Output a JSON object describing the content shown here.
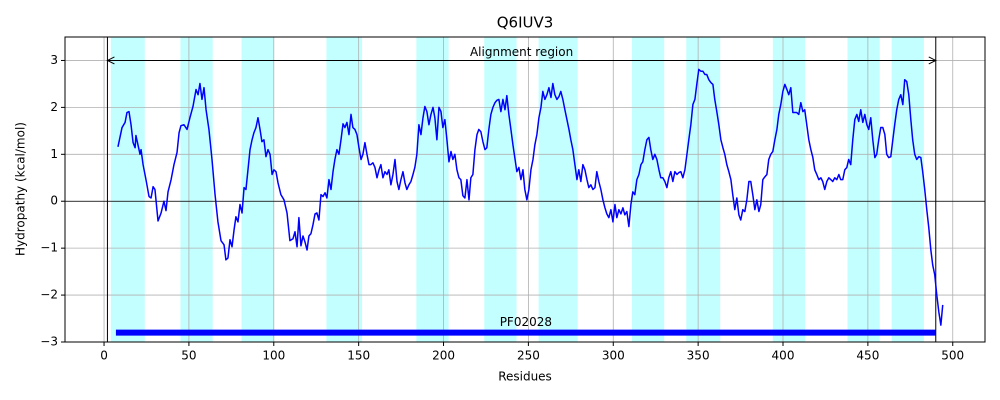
{
  "chart_data": {
    "type": "line",
    "title": "Q6IUV3",
    "xlabel": "Residues",
    "ylabel": "Hydropathy (kcal/mol)",
    "xlim": [
      -23,
      519
    ],
    "ylim": [
      -3,
      3.5
    ],
    "xticks": [
      0,
      50,
      100,
      150,
      200,
      250,
      300,
      350,
      400,
      450,
      500
    ],
    "yticks": [
      {
        "value": -3,
        "label": "−3"
      },
      {
        "value": -2,
        "label": "−2"
      },
      {
        "value": -1,
        "label": "−1"
      },
      0,
      1,
      2,
      3
    ],
    "grid": true,
    "series": [
      {
        "color": "#0000ff",
        "x": [
          8.2,
          10.6,
          12.4,
          13.5,
          14.7,
          15.9,
          17.1,
          18.3,
          18.8,
          20,
          21.2,
          21.8,
          23,
          24.7,
          26.5,
          27.7,
          28.9,
          30,
          31.8,
          33.6,
          35.3,
          36.5,
          37.7,
          39.5,
          41.2,
          43,
          44.2,
          45.3,
          47.1,
          48.9,
          50.6,
          52.4,
          54.2,
          55.4,
          56.5,
          57.7,
          58.9,
          60.1,
          61.8,
          63.6,
          65.4,
          67.1,
          68.9,
          70.7,
          71.8,
          73,
          74.2,
          75.4,
          76.6,
          77.7,
          78.9,
          80.1,
          81.3,
          82.5,
          83.6,
          84.8,
          86,
          87.2,
          88.3,
          89.5,
          90.7,
          91.9,
          93,
          94.2,
          95.4,
          96.6,
          97.8,
          99,
          100.1,
          101.3,
          102.5,
          104.2,
          106,
          107.8,
          109.5,
          111.3,
          112.5,
          113.7,
          114.8,
          116,
          117.2,
          118.4,
          119.6,
          120.7,
          121.9,
          123.1,
          124.3,
          125.4,
          126.6,
          127.8,
          129,
          130.2,
          131.3,
          132.5,
          133.7,
          134.9,
          136,
          137.2,
          138.4,
          139.6,
          140.8,
          141.9,
          143.1,
          144.3,
          145.5,
          146.6,
          147.8,
          149,
          150.2,
          151.4,
          152.5,
          153.7,
          154.9,
          156.1,
          157.2,
          158.4,
          159.6,
          160.8,
          162,
          163.1,
          164.3,
          165.5,
          166.7,
          167.8,
          169,
          170.2,
          171.4,
          172.6,
          173.7,
          174.9,
          176.1,
          177.3,
          178.4,
          179.6,
          180.8,
          182,
          183.1,
          184.3,
          185.5,
          186.7,
          187.9,
          189,
          190.2,
          191.4,
          192.6,
          193.8,
          194.9,
          196.1,
          197.3,
          198.5,
          199.6,
          200.8,
          202,
          203.2,
          204.4,
          205.5,
          206.7,
          207.9,
          209.1,
          210.2,
          211.4,
          212.6,
          213.8,
          215,
          216.1,
          217.3,
          218.5,
          219.7,
          220.8,
          222,
          223.2,
          224.4,
          225.5,
          226.7,
          227.9,
          229.1,
          230.3,
          231.4,
          232.6,
          233.8,
          235,
          236.2,
          237.3,
          238.5,
          239.7,
          240.9,
          242,
          243.2,
          244.4,
          245.6,
          246.8,
          247.9,
          249.1,
          250.3,
          251.5,
          252.7,
          253.8,
          255,
          256.2,
          257.4,
          258.5,
          259.7,
          260.9,
          262.1,
          263.3,
          264.4,
          265.6,
          266.8,
          268,
          269.1,
          270.3,
          271.5,
          272.7,
          273.9,
          275,
          276.2,
          277.4,
          278.6,
          279.7,
          280.9,
          282.1,
          283.3,
          284.5,
          285.6,
          286.8,
          288,
          289.2,
          290.3,
          291.5,
          292.7,
          293.9,
          295.1,
          296.2,
          297.4,
          298.6,
          299.8,
          301,
          302.1,
          303.3,
          304.5,
          305.7,
          306.8,
          308,
          309.2,
          310.4,
          311.5,
          312.7,
          313.9,
          315.1,
          316.3,
          317.4,
          318.6,
          319.8,
          321,
          322.1,
          323.3,
          324.5,
          325.7,
          326.9,
          328,
          329.2,
          330.4,
          331.6,
          332.7,
          333.9,
          335.1,
          336.3,
          337.5,
          338.6,
          339.8,
          341,
          342.2,
          343.4,
          344.5,
          345.7,
          346.9,
          348.1,
          349.2,
          350.4,
          351.6,
          352.8,
          354,
          355.1,
          356.3,
          357.5,
          358.7,
          359.8,
          361,
          362.2,
          363.4,
          364.6,
          365.7,
          366.9,
          368.1,
          369.3,
          370.4,
          371.6,
          372.8,
          374,
          375.1,
          376.3,
          377.5,
          378.7,
          379.9,
          381,
          382.2,
          383.4,
          384.6,
          385.8,
          386.9,
          388.1,
          389.3,
          390.5,
          391.6,
          392.8,
          394,
          395.2,
          396.4,
          397.5,
          398.7,
          399.9,
          401.1,
          402.3,
          403.4,
          404.6,
          405.8,
          407,
          408.1,
          409.3,
          410.5,
          411.7,
          412.8,
          414,
          415.2,
          416.4,
          417.6,
          418.7,
          419.9,
          421.1,
          422.3,
          423.4,
          424.6,
          425.8,
          427,
          428.2,
          429.3,
          430.5,
          431.7,
          432.9,
          434,
          435.2,
          436.4,
          437.6,
          438.7,
          439.9,
          441.1,
          442.3,
          443.5,
          444.6,
          445.8,
          447,
          448.2,
          449.4,
          450.5,
          451.7,
          452.9,
          454.1,
          455.2,
          456.4,
          457.6,
          458.8,
          460,
          461.1,
          462.3,
          463.5,
          464.7,
          465.8,
          467,
          468.2,
          469.4,
          470.6,
          471.7,
          472.9,
          474.1,
          475.3,
          476.4,
          477.6,
          478.8,
          480,
          481.2,
          482.3,
          483.5,
          484.7,
          485.9,
          487.1,
          488.2,
          489.4,
          490.6,
          491.8,
          493,
          494.1
        ],
        "values": [
          1.16,
          1.57,
          1.68,
          1.89,
          1.91,
          1.63,
          1.25,
          1.14,
          1.4,
          1.2,
          1.0,
          1.1,
          0.78,
          0.46,
          0.1,
          0.07,
          0.31,
          0.25,
          -0.42,
          -0.25,
          0,
          -0.2,
          0.2,
          0.46,
          0.78,
          1.04,
          1.46,
          1.61,
          1.63,
          1.53,
          1.78,
          2.02,
          2.38,
          2.27,
          2.51,
          2.17,
          2.42,
          1.95,
          1.53,
          0.89,
          0.14,
          -0.44,
          -0.84,
          -0.93,
          -1.25,
          -1.21,
          -0.82,
          -0.97,
          -0.61,
          -0.33,
          -0.44,
          -0.07,
          -0.25,
          0.29,
          0.25,
          0.67,
          1.1,
          1.31,
          1.46,
          1.57,
          1.78,
          1.53,
          1.27,
          1.31,
          0.95,
          1.1,
          1.0,
          0.57,
          0.67,
          0.63,
          0.39,
          0.14,
          0.03,
          -0.25,
          -0.84,
          -0.8,
          -0.65,
          -0.97,
          -0.35,
          -0.95,
          -0.74,
          -0.87,
          -1.04,
          -0.74,
          -0.69,
          -0.5,
          -0.27,
          -0.25,
          -0.4,
          0.14,
          0.1,
          0.18,
          0.07,
          0.46,
          0.25,
          0.63,
          0.89,
          1.1,
          1.0,
          1.31,
          1.65,
          1.57,
          1.68,
          1.42,
          1.85,
          1.57,
          1.53,
          1.42,
          1.14,
          0.89,
          1.0,
          1.25,
          1.0,
          0.78,
          0.78,
          0.82,
          0.72,
          0.5,
          0.67,
          0.78,
          0.5,
          0.63,
          0.57,
          0.67,
          0.35,
          0.57,
          0.89,
          0.42,
          0.25,
          0.46,
          0.63,
          0.39,
          0.25,
          0.35,
          0.42,
          0.57,
          0.72,
          1.0,
          1.63,
          1.42,
          1.78,
          2.02,
          1.91,
          1.63,
          1.85,
          2.0,
          1.78,
          1.31,
          2.0,
          1.91,
          1.57,
          1.74,
          1.31,
          0.84,
          1.06,
          0.89,
          1.0,
          0.67,
          0.5,
          0.46,
          0.12,
          0.07,
          0.46,
          0.03,
          0.5,
          0.57,
          1.1,
          1.42,
          1.53,
          1.48,
          1.27,
          1.1,
          1.14,
          1.53,
          1.85,
          2.0,
          2.1,
          2.15,
          2.17,
          1.91,
          2.17,
          1.95,
          2.25,
          1.85,
          1.53,
          1.2,
          0.93,
          0.63,
          0.72,
          0.46,
          0.67,
          0.25,
          0.03,
          0.25,
          0.67,
          0.89,
          1.2,
          1.42,
          1.78,
          2.0,
          2.34,
          2.17,
          2.27,
          2.42,
          2.21,
          2.51,
          2.27,
          2.17,
          2.23,
          2.34,
          2.17,
          1.95,
          1.74,
          1.53,
          1.31,
          1.1,
          0.78,
          0.46,
          0.67,
          0.42,
          0.78,
          0.67,
          0.46,
          0.29,
          0.35,
          0.25,
          0.29,
          0.63,
          0.42,
          0.25,
          0.03,
          -0.14,
          -0.27,
          -0.35,
          -0.18,
          -0.44,
          -0.07,
          -0.35,
          -0.18,
          -0.27,
          -0.14,
          -0.29,
          -0.22,
          -0.54,
          -0.07,
          0.2,
          0.14,
          0.46,
          0.57,
          0.78,
          0.84,
          1.1,
          1.31,
          1.36,
          1.1,
          0.89,
          1.0,
          0.89,
          0.67,
          0.5,
          0.5,
          0.42,
          0.29,
          0.5,
          0.63,
          0.42,
          0.63,
          0.57,
          0.61,
          0.63,
          0.5,
          0.67,
          1.0,
          1.31,
          1.63,
          2.06,
          2.17,
          2.49,
          2.81,
          2.77,
          2.77,
          2.7,
          2.7,
          2.59,
          2.53,
          2.49,
          2.17,
          1.91,
          1.63,
          1.31,
          1.14,
          1.0,
          0.78,
          0.63,
          0.46,
          0.14,
          -0.18,
          0.07,
          -0.29,
          -0.4,
          -0.18,
          -0.22,
          0.03,
          0.42,
          0.42,
          0.14,
          -0.18,
          0.03,
          -0.22,
          -0.07,
          0.46,
          0.52,
          0.57,
          0.89,
          1.0,
          1.06,
          1.31,
          1.53,
          1.85,
          2.06,
          2.34,
          2.49,
          2.38,
          2.27,
          2.42,
          1.89,
          1.89,
          1.89,
          1.85,
          2.1,
          1.91,
          1.95,
          1.63,
          1.31,
          1.1,
          0.93,
          0.67,
          0.57,
          0.46,
          0.5,
          0.42,
          0.25,
          0.42,
          0.5,
          0.46,
          0.42,
          0.5,
          0.46,
          0.57,
          0.46,
          0.46,
          0.67,
          0.72,
          0.89,
          0.78,
          1.31,
          1.74,
          1.85,
          1.7,
          1.95,
          1.68,
          1.85,
          1.63,
          1.53,
          1.78,
          1.31,
          0.93,
          1.0,
          1.31,
          1.57,
          1.57,
          1.42,
          1.0,
          0.93,
          0.95,
          1.31,
          1.63,
          1.95,
          2.17,
          2.27,
          2.06,
          2.59,
          2.55,
          2.27,
          1.74,
          1.31,
          1.0,
          0.89,
          0.95,
          0.93,
          0.63,
          0.25,
          -0.18,
          -0.57,
          -1.04,
          -1.36,
          -1.57,
          -2.0,
          -2.36,
          -2.64,
          -2.21
        ]
      }
    ],
    "regions": {
      "color": "#c4ffff",
      "spans": [
        [
          4,
          24
        ],
        [
          45,
          64
        ],
        [
          81,
          100
        ],
        [
          131,
          152
        ],
        [
          184,
          203
        ],
        [
          224,
          243
        ],
        [
          256,
          279
        ],
        [
          311,
          330
        ],
        [
          343,
          363
        ],
        [
          394,
          413
        ],
        [
          438,
          457
        ],
        [
          464,
          483
        ]
      ]
    },
    "hlines": [
      0
    ],
    "vlines": [
      2,
      490
    ],
    "arrow": {
      "label": "Alignment region",
      "from": 2,
      "to": 490,
      "y": 3
    },
    "domain": {
      "label": "PF02028",
      "start": 7,
      "end": 490,
      "y": -2.8,
      "color": "#0000ff"
    }
  }
}
